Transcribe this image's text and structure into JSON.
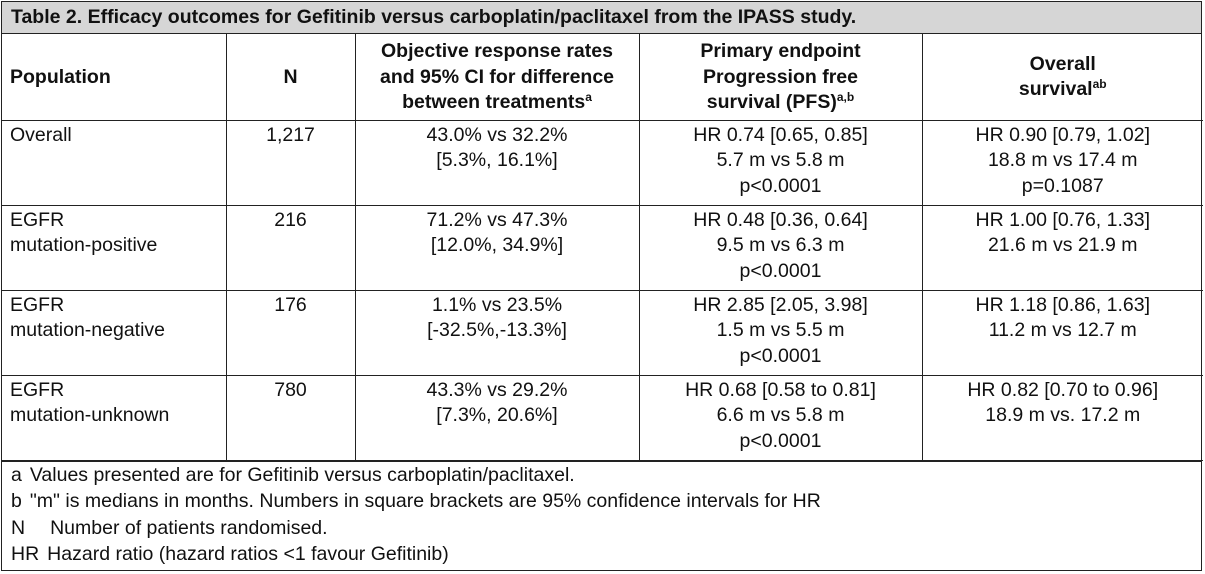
{
  "caption": "Table 2. Efficacy outcomes for Gefitinib versus carboplatin/paclitaxel from the IPASS study.",
  "headers": {
    "population": "Population",
    "n": "N",
    "orr": {
      "line1": "Objective response rates",
      "line2": "and 95% CI for difference",
      "line3": "between treatments",
      "sup": "a"
    },
    "pfs": {
      "line1": "Primary endpoint",
      "line2": "Progression free",
      "line3": "survival (PFS)",
      "sup": "a,b"
    },
    "os": {
      "line1": "Overall",
      "line2": "survival",
      "sup": "ab"
    }
  },
  "rows": [
    {
      "population": [
        "Overall",
        ""
      ],
      "n": "1,217",
      "orr": [
        "43.0% vs 32.2%",
        "[5.3%, 16.1%]"
      ],
      "pfs": [
        "HR 0.74 [0.65, 0.85]",
        "5.7 m vs 5.8 m",
        "p<0.0001"
      ],
      "os": [
        "HR 0.90 [0.79, 1.02]",
        "18.8 m vs 17.4 m",
        "p=0.1087"
      ]
    },
    {
      "population": [
        "EGFR",
        "mutation-positive"
      ],
      "n": "216",
      "orr": [
        "71.2% vs 47.3%",
        "[12.0%, 34.9%]"
      ],
      "pfs": [
        "HR 0.48 [0.36, 0.64]",
        "9.5 m vs 6.3 m",
        "p<0.0001"
      ],
      "os": [
        "HR 1.00 [0.76, 1.33]",
        "21.6 m vs 21.9 m",
        ""
      ]
    },
    {
      "population": [
        "EGFR",
        "mutation-negative"
      ],
      "n": "176",
      "orr": [
        "1.1% vs 23.5%",
        "[-32.5%,-13.3%]"
      ],
      "pfs": [
        "HR 2.85 [2.05, 3.98]",
        "1.5 m vs 5.5 m",
        "p<0.0001"
      ],
      "os": [
        "HR 1.18 [0.86, 1.63]",
        "11.2 m vs 12.7 m",
        ""
      ]
    },
    {
      "population": [
        "EGFR",
        "mutation-unknown"
      ],
      "n": "780",
      "orr": [
        "43.3% vs 29.2%",
        "[7.3%, 20.6%]"
      ],
      "pfs": [
        "HR 0.68 [0.58 to 0.81]",
        "6.6 m vs 5.8 m",
        "p<0.0001"
      ],
      "os": [
        "HR 0.82 [0.70 to 0.96]",
        "18.9 m vs. 17.2 m",
        ""
      ]
    }
  ],
  "notes": [
    {
      "key": "a",
      "text": "Values presented are for Gefitinib versus carboplatin/paclitaxel."
    },
    {
      "key": "b",
      "text": "\"m\" is medians in months. Numbers in square brackets are 95% confidence intervals for HR"
    },
    {
      "key": "N",
      "text": "Number of patients randomised."
    },
    {
      "key": "HR",
      "text": "Hazard ratio (hazard ratios <1 favour Gefitinib)"
    }
  ]
}
